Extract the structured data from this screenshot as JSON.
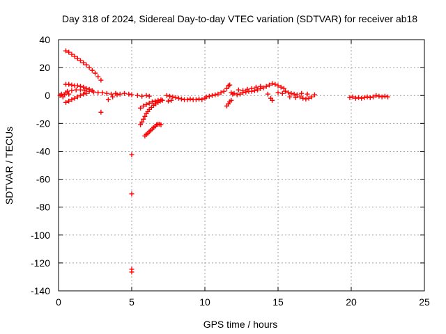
{
  "chart_data": {
    "type": "scatter",
    "title": "Day 318 of 2024, Sidereal Day-to-day VTEC variation (SDTVAR) for receiver ab18",
    "xlabel": "GPS time / hours",
    "ylabel": "SDTVAR / TECUs",
    "xlim": [
      0,
      25
    ],
    "ylim": [
      -140,
      40
    ],
    "xticks": [
      0,
      5,
      10,
      15,
      20,
      25
    ],
    "xtick_labels": [
      "0",
      "5",
      "10",
      "15",
      "20",
      "25"
    ],
    "yticks": [
      -140,
      -120,
      -100,
      -80,
      -60,
      -40,
      -20,
      0,
      20,
      40
    ],
    "ytick_labels": [
      "-140",
      "-120",
      "-100",
      "-80",
      "-60",
      "-40",
      "-20",
      "0",
      "20",
      "40"
    ],
    "grid": true,
    "marker": "plus",
    "color": "#ff0000",
    "series": [
      {
        "name": "SDTVAR",
        "points": [
          [
            0.1,
            0
          ],
          [
            0.2,
            1
          ],
          [
            0.3,
            -1
          ],
          [
            0.4,
            0.5
          ],
          [
            0.5,
            2
          ],
          [
            0.7,
            1
          ],
          [
            0.5,
            32
          ],
          [
            0.7,
            31
          ],
          [
            0.9,
            29.5
          ],
          [
            1.1,
            28
          ],
          [
            1.3,
            26.5
          ],
          [
            1.5,
            25
          ],
          [
            1.7,
            23.5
          ],
          [
            1.9,
            22
          ],
          [
            2.1,
            20
          ],
          [
            2.3,
            18
          ],
          [
            2.5,
            16
          ],
          [
            2.7,
            13.5
          ],
          [
            2.9,
            11
          ],
          [
            0.5,
            8
          ],
          [
            0.7,
            8
          ],
          [
            0.9,
            7.5
          ],
          [
            1.1,
            7
          ],
          [
            1.3,
            7
          ],
          [
            1.5,
            6.5
          ],
          [
            1.7,
            6
          ],
          [
            1.9,
            5
          ],
          [
            2.1,
            4.5
          ],
          [
            2.3,
            3.5
          ],
          [
            0.5,
            -5
          ],
          [
            0.7,
            -4
          ],
          [
            0.9,
            -3
          ],
          [
            1.1,
            -2
          ],
          [
            1.3,
            -1
          ],
          [
            1.5,
            0
          ],
          [
            1.7,
            1
          ],
          [
            1.9,
            1.5
          ],
          [
            0.6,
            3
          ],
          [
            0.9,
            3.5
          ],
          [
            1.2,
            4
          ],
          [
            1.5,
            4
          ],
          [
            1.8,
            3.5
          ],
          [
            2.1,
            3
          ],
          [
            2.4,
            2.5
          ],
          [
            2.7,
            2
          ],
          [
            2.9,
            -12
          ],
          [
            3.0,
            2
          ],
          [
            3.3,
            1.5
          ],
          [
            3.6,
            1
          ],
          [
            3.9,
            1.5
          ],
          [
            4.2,
            1
          ],
          [
            4.5,
            1.5
          ],
          [
            4.8,
            1
          ],
          [
            5.0,
            0.5
          ],
          [
            3.4,
            -3
          ],
          [
            3.7,
            -1
          ],
          [
            4.0,
            0.5
          ],
          [
            5.0,
            -42.5
          ],
          [
            5.0,
            -70.5
          ],
          [
            5.0,
            -124.5
          ],
          [
            5.0,
            -126.5
          ],
          [
            5.4,
            0
          ],
          [
            5.7,
            -0.5
          ],
          [
            6.0,
            0
          ],
          [
            6.2,
            -0.5
          ],
          [
            5.6,
            -21
          ],
          [
            5.7,
            -19
          ],
          [
            5.8,
            -17
          ],
          [
            5.9,
            -15
          ],
          [
            6.0,
            -13
          ],
          [
            6.1,
            -11.5
          ],
          [
            6.2,
            -10
          ],
          [
            6.35,
            -8.5
          ],
          [
            6.5,
            -7
          ],
          [
            6.65,
            -6
          ],
          [
            6.8,
            -5
          ],
          [
            6.95,
            -4
          ],
          [
            7.1,
            -3.5
          ],
          [
            5.6,
            -9
          ],
          [
            5.8,
            -7.5
          ],
          [
            6.0,
            -6.5
          ],
          [
            6.2,
            -5.5
          ],
          [
            6.4,
            -4.5
          ],
          [
            6.6,
            -4
          ],
          [
            6.8,
            -3.5
          ],
          [
            7.0,
            -3
          ],
          [
            5.9,
            -29
          ],
          [
            6.0,
            -28
          ],
          [
            6.1,
            -27
          ],
          [
            6.2,
            -26
          ],
          [
            6.3,
            -25
          ],
          [
            6.4,
            -24
          ],
          [
            6.5,
            -23
          ],
          [
            6.6,
            -22
          ],
          [
            6.7,
            -21
          ],
          [
            6.8,
            -20.5
          ],
          [
            6.9,
            -20.5
          ],
          [
            7.0,
            -21
          ],
          [
            7.4,
            0
          ],
          [
            7.6,
            -0.5
          ],
          [
            7.8,
            -1
          ],
          [
            8.0,
            -1.5
          ],
          [
            8.2,
            -2
          ],
          [
            8.4,
            -2.5
          ],
          [
            8.6,
            -3
          ],
          [
            8.8,
            -3
          ],
          [
            9.0,
            -2.5
          ],
          [
            9.2,
            -3
          ],
          [
            9.4,
            -3
          ],
          [
            9.6,
            -2.5
          ],
          [
            9.8,
            -3
          ],
          [
            10.0,
            -2
          ],
          [
            7.5,
            -4
          ],
          [
            7.7,
            -3.5
          ],
          [
            10.1,
            -1
          ],
          [
            10.3,
            -0.5
          ],
          [
            10.5,
            0
          ],
          [
            10.7,
            0.5
          ],
          [
            10.9,
            1
          ],
          [
            11.1,
            2
          ],
          [
            11.3,
            3
          ],
          [
            11.5,
            5
          ],
          [
            11.6,
            7
          ],
          [
            11.7,
            7.5
          ],
          [
            11.5,
            -7.5
          ],
          [
            11.6,
            -6
          ],
          [
            11.7,
            -4.5
          ],
          [
            11.8,
            -3.5
          ],
          [
            11.8,
            2
          ],
          [
            11.9,
            1
          ],
          [
            12.0,
            1.5
          ],
          [
            12.2,
            0.5
          ],
          [
            12.4,
            1
          ],
          [
            12.6,
            2
          ],
          [
            12.8,
            2.5
          ],
          [
            13.0,
            3
          ],
          [
            13.2,
            3
          ],
          [
            13.4,
            3.5
          ],
          [
            13.6,
            4
          ],
          [
            13.8,
            5
          ],
          [
            14.0,
            5.5
          ],
          [
            14.2,
            6.5
          ],
          [
            14.4,
            7.5
          ],
          [
            14.6,
            8.5
          ],
          [
            14.8,
            8
          ],
          [
            15.0,
            7
          ],
          [
            15.2,
            6
          ],
          [
            15.4,
            5
          ],
          [
            12.3,
            4
          ],
          [
            12.6,
            3.5
          ],
          [
            12.9,
            4.5
          ],
          [
            13.2,
            5
          ],
          [
            13.5,
            6
          ],
          [
            13.8,
            6.5
          ],
          [
            14.3,
            1
          ],
          [
            14.5,
            -2
          ],
          [
            14.6,
            -3.5
          ],
          [
            15.0,
            2
          ],
          [
            15.3,
            1.5
          ],
          [
            15.5,
            3
          ],
          [
            15.7,
            2
          ],
          [
            15.9,
            1.5
          ],
          [
            16.1,
            1
          ],
          [
            16.3,
            0.5
          ],
          [
            16.5,
            -1
          ],
          [
            16.7,
            -2
          ],
          [
            16.9,
            -2.5
          ],
          [
            17.1,
            -2
          ],
          [
            17.3,
            -1
          ],
          [
            17.5,
            0.5
          ],
          [
            15.8,
            -1
          ],
          [
            16.2,
            -1.5
          ],
          [
            16.6,
            1.5
          ],
          [
            17.0,
            1
          ],
          [
            19.9,
            -1.5
          ],
          [
            20.1,
            -1
          ],
          [
            20.3,
            -2
          ],
          [
            20.5,
            -1.5
          ],
          [
            20.7,
            -2
          ],
          [
            20.9,
            -1.5
          ],
          [
            21.1,
            -1
          ],
          [
            21.3,
            -1.5
          ],
          [
            21.5,
            -1
          ],
          [
            21.7,
            0
          ],
          [
            21.9,
            -0.5
          ],
          [
            22.1,
            -1
          ],
          [
            22.3,
            -0.5
          ],
          [
            22.5,
            -1
          ]
        ]
      }
    ]
  }
}
